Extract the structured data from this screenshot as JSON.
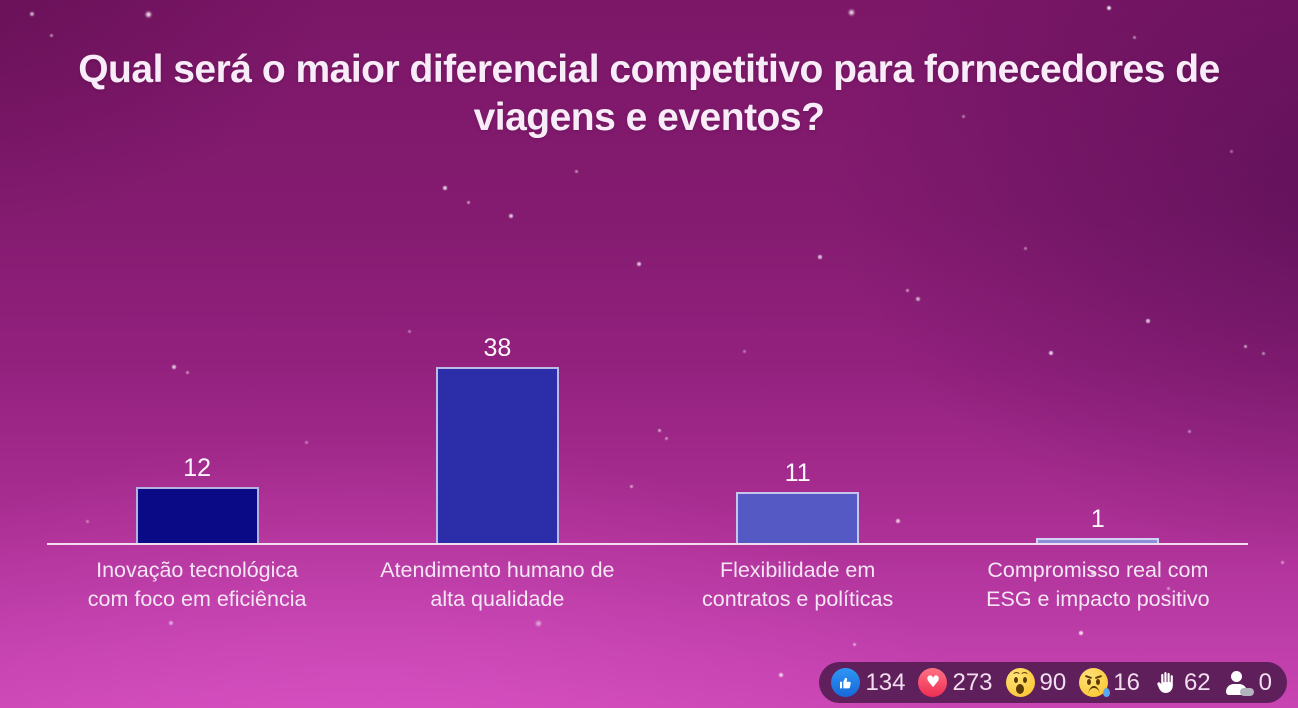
{
  "title": "Qual será o maior diferencial competitivo para fornecedores de viagens e eventos?",
  "chart_data": {
    "type": "bar",
    "title": "Qual será o maior diferencial competitivo para fornecedores de viagens e eventos?",
    "categories": [
      "Inovação tecnológica com foco em eficiência",
      "Atendimento humano de alta qualidade",
      "Flexibilidade em contratos e políticas",
      "Compromisso real com ESG e impacto positivo"
    ],
    "category_lines": [
      [
        "Inovação tecnológica",
        "com foco em eficiência"
      ],
      [
        "Atendimento humano de",
        "alta qualidade"
      ],
      [
        "Flexibilidade em",
        "contratos e políticas"
      ],
      [
        "Compromisso real com",
        "ESG e impacto positivo"
      ]
    ],
    "values": [
      12,
      38,
      11,
      1
    ],
    "bar_colors": [
      "#0a0a87",
      "#2b2da9",
      "#5559c3",
      "#8a90da"
    ],
    "xlabel": "",
    "ylabel": "",
    "ylim": [
      0,
      38
    ],
    "grid": false,
    "legend": null,
    "value_labels_shown": true
  },
  "reactions": {
    "items": [
      {
        "icon": "thumbs-up-icon",
        "count": "134"
      },
      {
        "icon": "heart-icon",
        "count": "273"
      },
      {
        "icon": "wow-face-icon",
        "count": "90"
      },
      {
        "icon": "sad-face-icon",
        "count": "16"
      },
      {
        "icon": "raised-hand-icon",
        "count": "62"
      },
      {
        "icon": "person-icon",
        "count": "0"
      }
    ]
  },
  "colors": {
    "background_top": "#7c1768",
    "background_bottom": "#c844b2",
    "title_text": "#f8ecf8",
    "category_text": "#f4e6f4",
    "value_text": "#fdf6fd",
    "baseline": "#f7eef7",
    "bar_border": "#ece6fa",
    "like_blue": "#1d83eb",
    "love_pink": "#ee2d53",
    "emoji_yellow": "#fccb3e",
    "tear_blue": "#5aa8f2",
    "reactions_pill_bg": "#38123a"
  }
}
